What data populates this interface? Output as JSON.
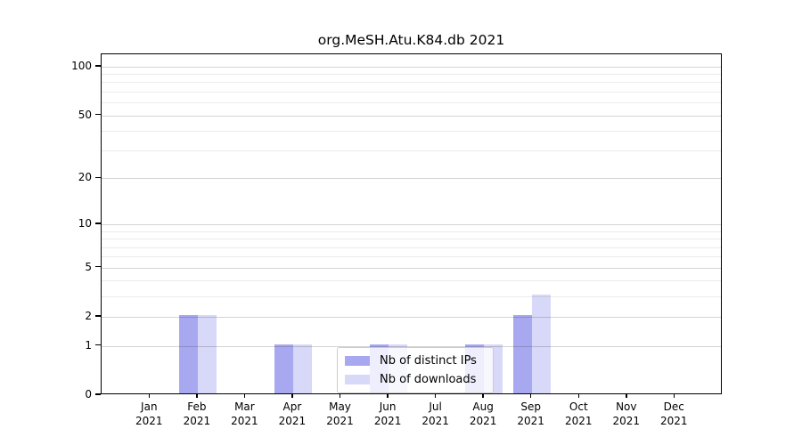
{
  "title": "org.MeSH.Atu.K84.db 2021",
  "chart_data": {
    "type": "bar",
    "title": "org.MeSH.Atu.K84.db 2021",
    "categories": [
      "Jan",
      "Feb",
      "Mar",
      "Apr",
      "May",
      "Jun",
      "Jul",
      "Aug",
      "Sep",
      "Oct",
      "Nov",
      "Dec"
    ],
    "year_label": "2021",
    "series": [
      {
        "name": "Nb of distinct IPs",
        "color": "#a8a8f0",
        "values": [
          0,
          2,
          0,
          1,
          0,
          1,
          0,
          1,
          2,
          0,
          0,
          0
        ]
      },
      {
        "name": "Nb of downloads",
        "color": "#d8d8f8",
        "values": [
          0,
          2,
          0,
          1,
          0,
          1,
          0,
          1,
          3,
          0,
          0,
          0
        ]
      }
    ],
    "xlabel": "",
    "ylabel": "",
    "yscale": "log1p",
    "ylim": [
      0,
      118
    ],
    "yticks": [
      0,
      1,
      2,
      5,
      10,
      20,
      50,
      100
    ],
    "minor_gridlines": [
      3,
      4,
      6,
      7,
      8,
      9,
      30,
      40,
      60,
      70,
      80,
      90
    ],
    "grid": true,
    "legend_position": "inside-bottom-center",
    "colors": {
      "major_gridline": "#d4d4d4",
      "minor_gridline": "#ebebeb",
      "axis": "#000000",
      "background": "#ffffff"
    }
  }
}
